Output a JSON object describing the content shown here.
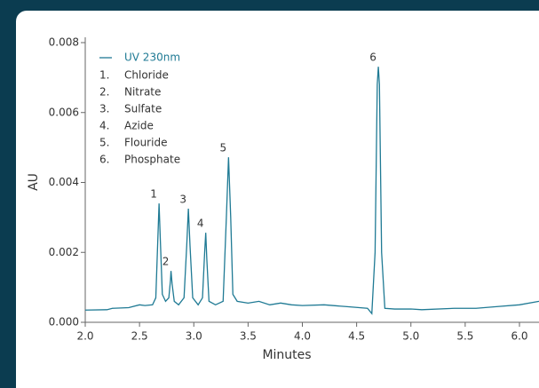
{
  "chart_data": {
    "type": "line",
    "x_label": "Minutes",
    "y_label": "AU",
    "xlim": [
      2.0,
      6.18
    ],
    "ylim": [
      0,
      0.008
    ],
    "xticks": [
      {
        "value": 2.0,
        "label": "2.0"
      },
      {
        "value": 2.5,
        "label": "2.5"
      },
      {
        "value": 3.0,
        "label": "3.0"
      },
      {
        "value": 3.5,
        "label": "3.5"
      },
      {
        "value": 4.0,
        "label": "4.0"
      },
      {
        "value": 4.5,
        "label": "4.5"
      },
      {
        "value": 5.0,
        "label": "5.0"
      },
      {
        "value": 5.5,
        "label": "5.5"
      },
      {
        "value": 6.0,
        "label": "6.0"
      }
    ],
    "yticks": [
      {
        "value": 0,
        "label": "0.000"
      },
      {
        "value": 0.002,
        "label": "0.002"
      },
      {
        "value": 0.004,
        "label": "0.004"
      },
      {
        "value": 0.006,
        "label": "0.006"
      },
      {
        "value": 0.008,
        "label": "0.008"
      }
    ],
    "x": [
      2.0,
      2.2,
      2.25,
      2.4,
      2.5,
      2.55,
      2.62,
      2.65,
      2.67,
      2.68,
      2.69,
      2.71,
      2.74,
      2.77,
      2.785,
      2.79,
      2.8,
      2.82,
      2.86,
      2.91,
      2.935,
      2.95,
      2.965,
      2.99,
      3.04,
      3.08,
      3.1,
      3.11,
      3.12,
      3.14,
      3.2,
      3.27,
      3.3,
      3.32,
      3.34,
      3.36,
      3.4,
      3.5,
      3.6,
      3.7,
      3.8,
      3.9,
      4.0,
      4.2,
      4.4,
      4.6,
      4.64,
      4.67,
      4.69,
      4.7,
      4.71,
      4.73,
      4.76,
      4.85,
      5.0,
      5.1,
      5.4,
      5.6,
      5.8,
      6.0,
      6.18
    ],
    "series": [
      {
        "name": "UV 230nm",
        "color": "#1f7a94",
        "values": [
          0.00035,
          0.00036,
          0.0004,
          0.00042,
          0.0005,
          0.00048,
          0.0005,
          0.0007,
          0.0025,
          0.0034,
          0.0025,
          0.0008,
          0.0006,
          0.0007,
          0.0012,
          0.00147,
          0.0011,
          0.0006,
          0.0005,
          0.0007,
          0.0022,
          0.00325,
          0.0022,
          0.0007,
          0.0005,
          0.0007,
          0.002,
          0.00256,
          0.0018,
          0.0006,
          0.0005,
          0.0006,
          0.003,
          0.00472,
          0.003,
          0.0008,
          0.0006,
          0.00055,
          0.0006,
          0.0005,
          0.00055,
          0.0005,
          0.00048,
          0.0005,
          0.00045,
          0.0004,
          0.00025,
          0.002,
          0.0068,
          0.00731,
          0.0068,
          0.002,
          0.0004,
          0.00038,
          0.00038,
          0.00036,
          0.0004,
          0.0004,
          0.00045,
          0.0005,
          0.0006
        ]
      }
    ],
    "peak_labels": [
      "1",
      "2",
      "3",
      "4",
      "5",
      "6"
    ],
    "compounds": [
      {
        "number": "1.",
        "name": "Chloride"
      },
      {
        "number": "2.",
        "name": "Nitrate"
      },
      {
        "number": "3.",
        "name": "Sulfate"
      },
      {
        "number": "4.",
        "name": "Azide"
      },
      {
        "number": "5.",
        "name": "Flouride"
      },
      {
        "number": "6.",
        "name": "Phosphate"
      }
    ]
  }
}
